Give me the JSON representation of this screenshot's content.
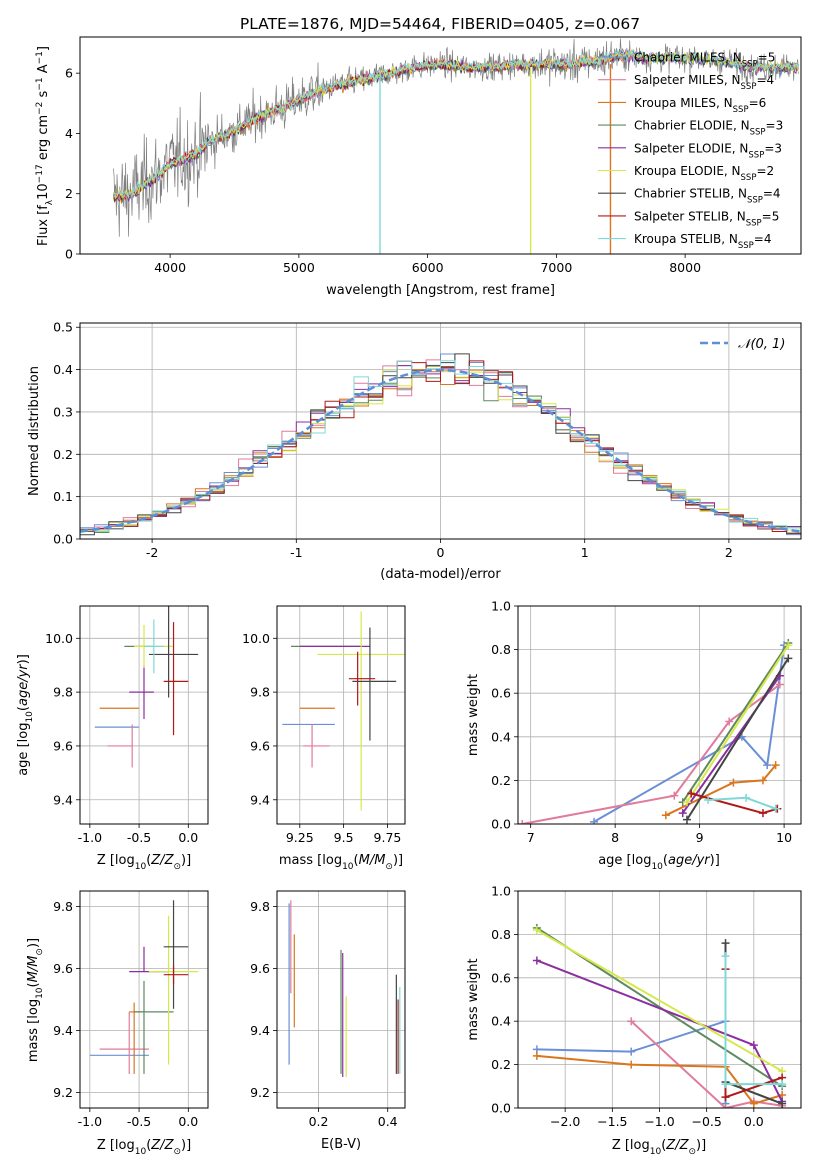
{
  "figure_title": "PLATE=1876, MJD=54464, FIBERID=0405, z=0.067",
  "legend_entries": [
    {
      "label": "Chabrier MILES, N",
      "sub": "SSP",
      "tail": "=5",
      "color": "#6b8fd6"
    },
    {
      "label": "Salpeter MILES, N",
      "sub": "SSP",
      "tail": "=4",
      "color": "#e07b9b"
    },
    {
      "label": "Kroupa MILES, N",
      "sub": "SSP",
      "tail": "=6",
      "color": "#d9761e"
    },
    {
      "label": "Chabrier ELODIE, N",
      "sub": "SSP",
      "tail": "=3",
      "color": "#5e8a5e"
    },
    {
      "label": "Salpeter ELODIE, N",
      "sub": "SSP",
      "tail": "=3",
      "color": "#8b2fa0"
    },
    {
      "label": "Kroupa ELODIE, N",
      "sub": "SSP",
      "tail": "=2",
      "color": "#d6e84a"
    },
    {
      "label": "Chabrier STELIB, N",
      "sub": "SSP",
      "tail": "=4",
      "color": "#444444"
    },
    {
      "label": "Salpeter STELIB, N",
      "sub": "SSP",
      "tail": "=5",
      "color": "#b01818"
    },
    {
      "label": "Kroupa STELIB, N",
      "sub": "SSP",
      "tail": "=4",
      "color": "#7fd8d8"
    }
  ],
  "normal_legend": "𝒩(0, 1)",
  "chart_data": [
    {
      "id": "spectrum",
      "type": "line",
      "xlabel": "wavelength [Angstrom, rest frame]",
      "ylabel": "Flux [f_λ 10^-17 erg cm^-2 s^-1 A^-1]",
      "xlim": [
        3300,
        8900
      ],
      "ylim": [
        0,
        7.2
      ],
      "xticks": [
        4000,
        5000,
        6000,
        7000,
        8000
      ],
      "yticks": [
        0,
        2,
        4,
        6
      ],
      "grid": false,
      "legend_position": "lower right",
      "continuum_x": [
        3550,
        3700,
        3900,
        4000,
        4200,
        4300,
        4500,
        4700,
        4900,
        5100,
        5300,
        5500,
        5700,
        5900,
        6100,
        6300,
        6500,
        6700,
        6900,
        7100,
        7300,
        7500,
        7700,
        8000,
        8300,
        8500,
        8880
      ],
      "continuum_y": [
        1.9,
        2.0,
        2.6,
        3.0,
        3.3,
        3.7,
        4.1,
        4.6,
        4.9,
        5.3,
        5.6,
        5.8,
        6.0,
        6.2,
        6.3,
        6.2,
        6.2,
        6.3,
        6.3,
        6.3,
        6.4,
        6.6,
        6.5,
        6.5,
        6.4,
        6.2,
        6.2
      ]
    },
    {
      "id": "residuals",
      "type": "histogram",
      "xlabel": "(data-model)/error",
      "ylabel": "Normed distribution",
      "xlim": [
        -2.5,
        2.5
      ],
      "ylim": [
        0,
        0.51
      ],
      "xticks": [
        -2,
        -1,
        0,
        1,
        2
      ],
      "yticks": [
        0.0,
        0.1,
        0.2,
        0.3,
        0.4,
        0.5
      ],
      "grid": true,
      "legend_position": "upper right",
      "bin_width": 0.1,
      "reference_curve": "normal(0,1)"
    },
    {
      "id": "age_vs_Z",
      "type": "scatter",
      "xlabel": "Z [log10(Z/Z☉)]",
      "ylabel": "age  [log10(age/yr)]",
      "xlim": [
        -1.1,
        0.2
      ],
      "ylim": [
        9.31,
        10.12
      ],
      "xticks": [
        -1.0,
        -0.5,
        0.0
      ],
      "yticks": [
        9.4,
        9.6,
        9.8,
        10.0
      ],
      "grid": true,
      "points": [
        {
          "x": -0.5,
          "y": 9.67,
          "xerr": [
            0.45,
            0.0
          ],
          "yerr": [
            0.0,
            0.0
          ]
        },
        {
          "x": -0.57,
          "y": 9.6,
          "xerr": [
            0.25,
            0.0
          ],
          "yerr": [
            0.08,
            0.08
          ]
        },
        {
          "x": -0.6,
          "y": 9.74,
          "xerr": [
            0.3,
            0.1
          ],
          "yerr": [
            0.0,
            0.0
          ]
        },
        {
          "x": -0.5,
          "y": 9.97,
          "xerr": [
            0.15,
            0.15
          ],
          "yerr": [
            0.0,
            0.0
          ]
        },
        {
          "x": -0.45,
          "y": 9.8,
          "xerr": [
            0.15,
            0.1
          ],
          "yerr": [
            0.1,
            0.1
          ]
        },
        {
          "x": -0.45,
          "y": 9.97,
          "xerr": [
            0.1,
            0.3
          ],
          "yerr": [
            0.08,
            0.08
          ]
        },
        {
          "x": -0.2,
          "y": 9.94,
          "xerr": [
            0.2,
            0.3
          ],
          "yerr": [
            0.16,
            0.58
          ]
        },
        {
          "x": -0.15,
          "y": 9.84,
          "xerr": [
            0.1,
            0.15
          ],
          "yerr": [
            0.2,
            0.22
          ]
        },
        {
          "x": -0.35,
          "y": 9.97,
          "xerr": [
            0.1,
            0.1
          ],
          "yerr": [
            0.1,
            0.1
          ]
        }
      ]
    },
    {
      "id": "age_vs_mass",
      "type": "scatter",
      "xlabel": "mass [log10(M/M☉)]",
      "ylabel": "",
      "xlim": [
        9.12,
        9.85
      ],
      "ylim": [
        9.31,
        10.12
      ],
      "xticks": [
        9.25,
        9.5,
        9.75
      ],
      "yticks": [
        9.4,
        9.6,
        9.8,
        10.0
      ],
      "grid": true,
      "points": [
        {
          "x": 9.35,
          "y": 9.68,
          "xerr": [
            0.2,
            0.1
          ],
          "yerr": [
            0.0,
            0.0
          ]
        },
        {
          "x": 9.32,
          "y": 9.6,
          "xerr": [
            0.05,
            0.1
          ],
          "yerr": [
            0.08,
            0.08
          ]
        },
        {
          "x": 9.35,
          "y": 9.74,
          "xerr": [
            0.1,
            0.1
          ],
          "yerr": [
            0.0,
            0.0
          ]
        },
        {
          "x": 9.4,
          "y": 9.97,
          "xerr": [
            0.2,
            0.2
          ],
          "yerr": [
            0.0,
            0.0
          ]
        },
        {
          "x": 9.45,
          "y": 9.97,
          "xerr": [
            0.2,
            0.2
          ],
          "yerr": [
            0.0,
            0.0
          ]
        },
        {
          "x": 9.6,
          "y": 9.94,
          "xerr": [
            0.25,
            0.25
          ],
          "yerr": [
            0.58,
            0.16
          ]
        },
        {
          "x": 9.65,
          "y": 9.84,
          "xerr": [
            0.1,
            0.15
          ],
          "yerr": [
            0.22,
            0.2
          ]
        },
        {
          "x": 9.58,
          "y": 9.85,
          "xerr": [
            0.05,
            0.1
          ],
          "yerr": [
            0.1,
            0.1
          ]
        }
      ]
    },
    {
      "id": "weight_vs_age",
      "type": "line",
      "xlabel": "age  [log10(age/yr)]",
      "ylabel": "mass weight",
      "xlim": [
        6.85,
        10.2
      ],
      "ylim": [
        0,
        1.0
      ],
      "xticks": [
        7,
        8,
        9,
        10
      ],
      "yticks": [
        0.0,
        0.2,
        0.4,
        0.6,
        0.8,
        1.0
      ],
      "grid": true,
      "series": [
        {
          "x": [
            7.75,
            9.5,
            9.8,
            10.0
          ],
          "y": [
            0.01,
            0.4,
            0.27,
            0.82
          ]
        },
        {
          "x": [
            6.9,
            8.7,
            9.35,
            9.95
          ],
          "y": [
            0.0,
            0.13,
            0.47,
            0.64
          ]
        },
        {
          "x": [
            8.6,
            9.4,
            9.75,
            9.9
          ],
          "y": [
            0.04,
            0.19,
            0.2,
            0.27
          ]
        },
        {
          "x": [
            8.8,
            10.05
          ],
          "y": [
            0.1,
            0.83
          ]
        },
        {
          "x": [
            8.8,
            9.95
          ],
          "y": [
            0.05,
            0.68
          ]
        },
        {
          "x": [
            8.85,
            10.05
          ],
          "y": [
            0.1,
            0.82
          ]
        },
        {
          "x": [
            8.85,
            10.05
          ],
          "y": [
            0.02,
            0.76
          ]
        },
        {
          "x": [
            8.9,
            9.75,
            9.92
          ],
          "y": [
            0.14,
            0.05,
            0.07
          ]
        },
        {
          "x": [
            9.1,
            9.55,
            9.9
          ],
          "y": [
            0.11,
            0.12,
            0.07
          ]
        }
      ]
    },
    {
      "id": "mass_vs_Z",
      "type": "scatter",
      "xlabel": "Z [log10(Z/Z☉)]",
      "ylabel": "mass [log10(M/M☉)]",
      "xlim": [
        -1.1,
        0.2
      ],
      "ylim": [
        9.15,
        9.85
      ],
      "xticks": [
        -1.0,
        -0.5,
        0.0
      ],
      "yticks": [
        9.2,
        9.4,
        9.6,
        9.8
      ],
      "grid": true,
      "points": [
        {
          "x": -0.6,
          "y": 9.32,
          "xerr": [
            0.4,
            0.2
          ],
          "yerr": [
            0.0,
            0.0
          ]
        },
        {
          "x": -0.6,
          "y": 9.34,
          "xerr": [
            0.3,
            0.2
          ],
          "yerr": [
            0.08,
            0.12
          ]
        },
        {
          "x": -0.55,
          "y": 9.46,
          "xerr": [
            0.05,
            0.1
          ],
          "yerr": [
            0.2,
            0.03
          ]
        },
        {
          "x": -0.45,
          "y": 9.46,
          "xerr": [
            0.1,
            0.3
          ],
          "yerr": [
            0.2,
            0.1
          ]
        },
        {
          "x": -0.45,
          "y": 9.59,
          "xerr": [
            0.15,
            0.25
          ],
          "yerr": [
            0.0,
            0.08
          ]
        },
        {
          "x": -0.2,
          "y": 9.59,
          "xerr": [
            0.2,
            0.3
          ],
          "yerr": [
            0.3,
            0.18
          ]
        },
        {
          "x": -0.15,
          "y": 9.67,
          "xerr": [
            0.1,
            0.15
          ],
          "yerr": [
            0.2,
            0.15
          ]
        },
        {
          "x": -0.15,
          "y": 9.58,
          "xerr": [
            0.1,
            0.15
          ],
          "yerr": [
            0.03,
            0.03
          ]
        }
      ]
    },
    {
      "id": "mass_vs_ebv",
      "type": "scatter",
      "xlabel": "E(B-V)",
      "ylabel": "",
      "xlim": [
        0.08,
        0.45
      ],
      "ylim": [
        9.15,
        9.85
      ],
      "xticks": [
        0.2,
        0.4
      ],
      "yticks": [
        9.2,
        9.4,
        9.6,
        9.8
      ],
      "grid": true,
      "points": [
        {
          "x": 0.115,
          "y": 9.55,
          "yerr": [
            0.26,
            0.26
          ]
        },
        {
          "x": 0.12,
          "y": 9.67,
          "yerr": [
            0.15,
            0.15
          ]
        },
        {
          "x": 0.13,
          "y": 9.56,
          "yerr": [
            0.15,
            0.15
          ]
        },
        {
          "x": 0.265,
          "y": 9.46,
          "yerr": [
            0.2,
            0.2
          ]
        },
        {
          "x": 0.27,
          "y": 9.45,
          "yerr": [
            0.2,
            0.2
          ]
        },
        {
          "x": 0.28,
          "y": 9.38,
          "yerr": [
            0.13,
            0.13
          ]
        },
        {
          "x": 0.425,
          "y": 9.42,
          "yerr": [
            0.16,
            0.16
          ]
        },
        {
          "x": 0.43,
          "y": 9.38,
          "yerr": [
            0.12,
            0.12
          ]
        },
        {
          "x": 0.435,
          "y": 9.4,
          "yerr": [
            0.14,
            0.14
          ]
        }
      ]
    },
    {
      "id": "weight_vs_Z",
      "type": "line",
      "xlabel": "Z [log10(Z/Z☉)]",
      "ylabel": "mass weight",
      "xlim": [
        -2.5,
        0.5
      ],
      "ylim": [
        0,
        1.0
      ],
      "xticks": [
        -2.0,
        -1.5,
        -1.0,
        -0.5,
        0.0
      ],
      "yticks": [
        0.0,
        0.2,
        0.4,
        0.6,
        0.8,
        1.0
      ],
      "grid": true,
      "series": [
        {
          "x": [
            -2.3,
            -1.3,
            -0.3,
            -0.3
          ],
          "y": [
            0.27,
            0.26,
            0.4,
            0.02
          ]
        },
        {
          "x": [
            -1.3,
            -0.3,
            0.0,
            0.3
          ],
          "y": [
            0.4,
            0.0,
            0.03,
            0.01
          ]
        },
        {
          "x": [
            -2.3,
            -1.3,
            -0.3,
            0.0,
            0.3
          ],
          "y": [
            0.24,
            0.2,
            0.19,
            0.02,
            0.06
          ]
        },
        {
          "x": [
            -2.3,
            0.3
          ],
          "y": [
            0.83,
            0.1
          ]
        },
        {
          "x": [
            -2.3,
            0.0,
            0.3
          ],
          "y": [
            0.68,
            0.29,
            0.03
          ]
        },
        {
          "x": [
            -2.3,
            0.3
          ],
          "y": [
            0.82,
            0.17
          ]
        },
        {
          "x": [
            -0.3,
            -0.3,
            0.3
          ],
          "y": [
            0.76,
            0.12,
            0.02
          ]
        },
        {
          "x": [
            -0.3,
            -0.3,
            0.3
          ],
          "y": [
            0.64,
            0.05,
            0.14
          ]
        },
        {
          "x": [
            -0.3,
            -0.3,
            0.3
          ],
          "y": [
            0.7,
            0.11,
            0.11
          ]
        }
      ]
    }
  ]
}
